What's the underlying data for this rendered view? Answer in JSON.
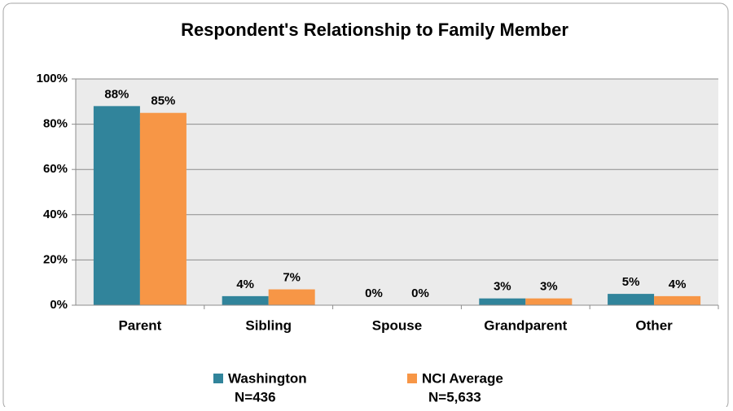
{
  "chart_data": {
    "type": "bar",
    "title": "Respondent's Relationship to Family Member",
    "categories": [
      "Parent",
      "Sibling",
      "Spouse",
      "Grandparent",
      "Other"
    ],
    "series": [
      {
        "name": "Washington",
        "sample_size": "N=436",
        "color": "#31849b",
        "values": [
          88,
          4,
          0,
          3,
          5
        ],
        "value_labels": [
          "88%",
          "4%",
          "0%",
          "3%",
          "5%"
        ]
      },
      {
        "name": "NCI Average",
        "sample_size": "N=5,633",
        "color": "#f79646",
        "values": [
          85,
          7,
          0,
          3,
          4
        ],
        "value_labels": [
          "85%",
          "7%",
          "0%",
          "3%",
          "4%"
        ]
      }
    ],
    "ylim": [
      0,
      100
    ],
    "yticks": [
      {
        "value": 0,
        "label": "0%"
      },
      {
        "value": 20,
        "label": "20%"
      },
      {
        "value": 40,
        "label": "40%"
      },
      {
        "value": 60,
        "label": "60%"
      },
      {
        "value": 80,
        "label": "80%"
      },
      {
        "value": 100,
        "label": "100%"
      }
    ],
    "grid": true,
    "legend": "bottom"
  }
}
